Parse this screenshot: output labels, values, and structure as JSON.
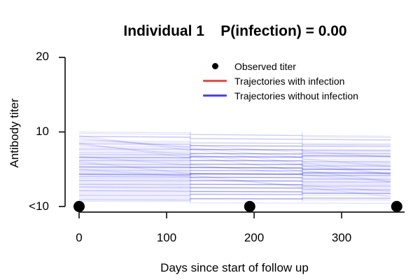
{
  "figure": {
    "background": "#ffffff"
  },
  "chart_data": {
    "type": "line",
    "title": "Individual 1    P(infection) = 0.00",
    "individual": "1",
    "p_infection": "0.00",
    "xlabel": "Days since start of follow up",
    "ylabel": "Antibody titer",
    "x_ticks": [
      0,
      100,
      200,
      300
    ],
    "x_tick_labels": [
      "0",
      "100",
      "200",
      "300"
    ],
    "y_tick_labels": [
      "20",
      "10",
      "<10"
    ],
    "y_tick_units": [
      2,
      1,
      0
    ],
    "xlim": [
      0,
      374
    ],
    "ylim_units": [
      0,
      2
    ],
    "axis_color": "#1a1a1a",
    "legend": [
      {
        "label": "Observed titer",
        "symbol": "point",
        "color": "#000000"
      },
      {
        "label": "Trajectories with infection",
        "symbol": "line",
        "color": "#fc4545"
      },
      {
        "label": "Trajectories without infection",
        "symbol": "line",
        "color": "#4545fc"
      }
    ],
    "observed_points": [
      {
        "day": 0,
        "titer": "<10",
        "titer_units": 0
      },
      {
        "day": 195,
        "titer": "<10",
        "titer_units": 0
      },
      {
        "day": 363,
        "titer": "<10",
        "titer_units": 0
      }
    ],
    "trajectories_with_infection": {
      "color": "#fc4545",
      "lines": []
    },
    "trajectories_without_infection": {
      "color": "#0000ff",
      "day_range": [
        0,
        356
      ],
      "jump_days": [
        127,
        255
      ],
      "weight_opacity": [
        0,
        0.1,
        0.22,
        0.38
      ],
      "lines": [
        [
          1.0,
          0.96,
          1
        ],
        [
          0.98,
          0.94,
          1
        ],
        [
          0.95,
          0.4,
          1
        ],
        [
          0.94,
          0.91,
          2
        ],
        [
          0.92,
          0.55,
          1
        ],
        [
          0.9,
          0.63,
          1
        ],
        [
          0.88,
          0.86,
          1
        ],
        [
          0.86,
          0.84,
          1
        ],
        [
          0.85,
          0.3,
          1
        ],
        [
          0.84,
          0.82,
          2
        ],
        [
          0.83,
          0.45,
          1
        ],
        [
          0.81,
          0.79,
          1
        ],
        [
          0.79,
          0.77,
          1
        ],
        [
          0.77,
          0.76,
          2
        ],
        [
          0.75,
          0.73,
          1
        ],
        [
          0.73,
          0.72,
          1
        ],
        [
          0.72,
          0.7,
          1
        ],
        [
          0.7,
          0.68,
          2
        ],
        [
          0.68,
          0.67,
          1
        ],
        [
          0.67,
          0.35,
          1
        ],
        [
          0.66,
          0.64,
          3
        ],
        [
          0.64,
          0.62,
          1
        ],
        [
          0.62,
          0.61,
          2
        ],
        [
          0.61,
          0.59,
          1
        ],
        [
          0.59,
          0.58,
          1
        ],
        [
          0.57,
          0.56,
          2
        ],
        [
          0.56,
          0.54,
          1
        ],
        [
          0.54,
          0.53,
          1
        ],
        [
          0.53,
          0.51,
          3
        ],
        [
          0.51,
          0.5,
          1
        ],
        [
          0.5,
          0.22,
          1
        ],
        [
          0.49,
          0.47,
          2
        ],
        [
          0.47,
          0.46,
          1
        ],
        [
          0.46,
          0.44,
          1
        ],
        [
          0.44,
          0.43,
          2
        ],
        [
          0.43,
          0.41,
          3
        ],
        [
          0.41,
          0.4,
          1
        ],
        [
          0.4,
          0.38,
          2
        ],
        [
          0.38,
          0.37,
          1
        ],
        [
          0.37,
          0.35,
          1
        ],
        [
          0.35,
          0.34,
          2
        ],
        [
          0.34,
          0.32,
          1
        ],
        [
          0.32,
          0.31,
          1
        ],
        [
          0.3,
          0.29,
          2
        ],
        [
          0.29,
          0.27,
          1
        ],
        [
          0.27,
          0.26,
          1
        ],
        [
          0.26,
          0.24,
          2
        ],
        [
          0.24,
          0.23,
          1
        ],
        [
          0.22,
          0.21,
          1
        ],
        [
          0.21,
          0.19,
          2
        ],
        [
          0.19,
          0.18,
          1
        ],
        [
          0.6,
          0.15,
          1
        ],
        [
          0.17,
          0.16,
          1
        ],
        [
          0.15,
          0.14,
          2
        ],
        [
          0.13,
          0.12,
          1
        ],
        [
          0.11,
          0.1,
          1
        ],
        [
          0.09,
          0.08,
          2
        ],
        [
          0.07,
          0.06,
          1
        ]
      ]
    }
  }
}
